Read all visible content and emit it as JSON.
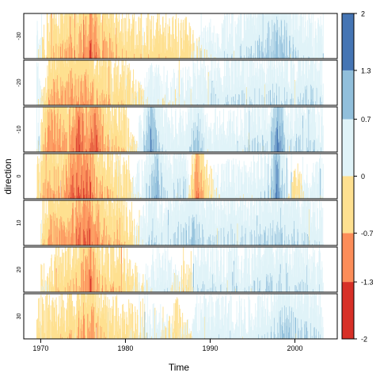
{
  "chart_data": {
    "type": "heatmap",
    "style": "horizon-plot",
    "xlabel": "Time",
    "ylabel": "direction",
    "x_ticks": [
      1970,
      1980,
      1990,
      2000
    ],
    "xlim": [
      1968.0,
      2005.0
    ],
    "data_start": 1969.5,
    "data_end": 2003.3,
    "panels": [
      {
        "label": "-30",
        "start": 1969.5,
        "end": 2003.3,
        "stops": [
          [
            1969.5,
            0.3
          ],
          [
            1971,
            -0.5
          ],
          [
            1973.5,
            -0.7
          ],
          [
            1975,
            -0.9
          ],
          [
            1976,
            -1.5
          ],
          [
            1977,
            -0.9
          ],
          [
            1979,
            -0.6
          ],
          [
            1981,
            -0.4
          ],
          [
            1984,
            -0.4
          ],
          [
            1987,
            -0.3
          ],
          [
            1989,
            0.1
          ],
          [
            1991,
            0.4
          ],
          [
            1994,
            0.6
          ],
          [
            1996,
            0.8
          ],
          [
            1998.5,
            1.1
          ],
          [
            2000,
            0.6
          ],
          [
            2003.3,
            0.3
          ]
        ]
      },
      {
        "label": "-20",
        "start": 1969.5,
        "end": 2003.3,
        "stops": [
          [
            1969.5,
            0.4
          ],
          [
            1971,
            -0.7
          ],
          [
            1973,
            -0.9
          ],
          [
            1974.5,
            -1.0
          ],
          [
            1976,
            -0.8
          ],
          [
            1978,
            -0.5
          ],
          [
            1980,
            -0.4
          ],
          [
            1983,
            0.3
          ],
          [
            1986,
            0.2
          ],
          [
            1989,
            0.4
          ],
          [
            1992,
            0.5
          ],
          [
            1995,
            0.6
          ],
          [
            1998,
            0.7
          ],
          [
            2000,
            0.5
          ],
          [
            2002,
            0.8
          ],
          [
            2003.3,
            0.4
          ]
        ]
      },
      {
        "label": "-10",
        "start": 1969.5,
        "end": 2003.3,
        "stops": [
          [
            1969.5,
            0.3
          ],
          [
            1971,
            -1.2
          ],
          [
            1973,
            -0.8
          ],
          [
            1974.5,
            -1.7
          ],
          [
            1975.5,
            -1.0
          ],
          [
            1976.3,
            -1.7
          ],
          [
            1977.5,
            -0.8
          ],
          [
            1980,
            -0.4
          ],
          [
            1982,
            0.5
          ],
          [
            1983,
            1.5
          ],
          [
            1984.5,
            0.4
          ],
          [
            1987,
            0.3
          ],
          [
            1988.5,
            1.0
          ],
          [
            1990,
            0.3
          ],
          [
            1993,
            0.4
          ],
          [
            1995.5,
            0.6
          ],
          [
            1997,
            0.6
          ],
          [
            1998,
            1.7
          ],
          [
            1999,
            0.6
          ],
          [
            2001.5,
            0.6
          ],
          [
            2003.3,
            0.4
          ]
        ]
      },
      {
        "label": "0",
        "start": 1969.5,
        "end": 2003.3,
        "stops": [
          [
            1969.5,
            -0.3
          ],
          [
            1971,
            -0.9
          ],
          [
            1972.5,
            -0.8
          ],
          [
            1974,
            -1.5
          ],
          [
            1975.5,
            -1.6
          ],
          [
            1976.5,
            -0.9
          ],
          [
            1978,
            -0.5
          ],
          [
            1980,
            -0.3
          ],
          [
            1982.5,
            0.6
          ],
          [
            1983.5,
            1.2
          ],
          [
            1985,
            0.5
          ],
          [
            1987,
            0.8
          ],
          [
            1988.5,
            -1.3
          ],
          [
            1989.5,
            -0.4
          ],
          [
            1991,
            0.3
          ],
          [
            1993,
            0.3
          ],
          [
            1995,
            0.3
          ],
          [
            1997,
            0.6
          ],
          [
            1997.8,
            1.8
          ],
          [
            1998.6,
            0.8
          ],
          [
            2000,
            -0.3
          ],
          [
            2001.5,
            0.3
          ],
          [
            2003.3,
            0.3
          ]
        ]
      },
      {
        "label": "10",
        "start": 1970.0,
        "end": 2003.3,
        "stops": [
          [
            1970,
            -0.3
          ],
          [
            1971,
            -0.9
          ],
          [
            1973,
            -0.8
          ],
          [
            1974,
            -1.3
          ],
          [
            1975.5,
            -1.6
          ],
          [
            1976.5,
            -1.1
          ],
          [
            1978,
            -0.6
          ],
          [
            1980,
            -0.4
          ],
          [
            1983,
            0.6
          ],
          [
            1985,
            0.6
          ],
          [
            1988,
            0.9
          ],
          [
            1990,
            0.5
          ],
          [
            1992.5,
            0.7
          ],
          [
            1995,
            0.6
          ],
          [
            1998,
            0.8
          ],
          [
            2000,
            0.6
          ],
          [
            2003.3,
            0.4
          ]
        ]
      },
      {
        "label": "20",
        "start": 1970.0,
        "end": 2003.3,
        "stops": [
          [
            1970,
            -0.1
          ],
          [
            1972,
            -0.4
          ],
          [
            1974,
            -0.6
          ],
          [
            1975.8,
            -1.4
          ],
          [
            1977,
            -0.6
          ],
          [
            1980,
            -0.4
          ],
          [
            1983,
            0.3
          ],
          [
            1985,
            0.4
          ],
          [
            1987,
            -0.3
          ],
          [
            1988.5,
            0.5
          ],
          [
            1991,
            0.5
          ],
          [
            1994,
            0.4
          ],
          [
            1997,
            0.7
          ],
          [
            2000,
            0.6
          ],
          [
            2003.3,
            0.3
          ]
        ]
      },
      {
        "label": "30",
        "start": 1969.5,
        "end": 2003.3,
        "stops": [
          [
            1969.5,
            -0.3
          ],
          [
            1972,
            -0.4
          ],
          [
            1974,
            -0.5
          ],
          [
            1976,
            -0.9
          ],
          [
            1978,
            -0.4
          ],
          [
            1980,
            -0.3
          ],
          [
            1984,
            0.3
          ],
          [
            1986,
            -0.3
          ],
          [
            1988,
            0.3
          ],
          [
            1991,
            0.4
          ],
          [
            1994,
            0.3
          ],
          [
            1997,
            0.6
          ],
          [
            1999,
            0.9
          ],
          [
            2001,
            0.7
          ],
          [
            2003.3,
            0.4
          ]
        ]
      }
    ],
    "colorbar": {
      "breaks": [
        -2,
        -1.3,
        -0.7,
        0,
        0.7,
        1.3,
        2
      ],
      "labels": [
        "-2",
        "-1.3",
        "-0.7",
        "0",
        "0.7",
        "1.3",
        "2"
      ],
      "colors": [
        "#d73027",
        "#fc8d59",
        "#fee090",
        "#e0f3f8",
        "#91bfdb",
        "#4575b4"
      ]
    }
  }
}
